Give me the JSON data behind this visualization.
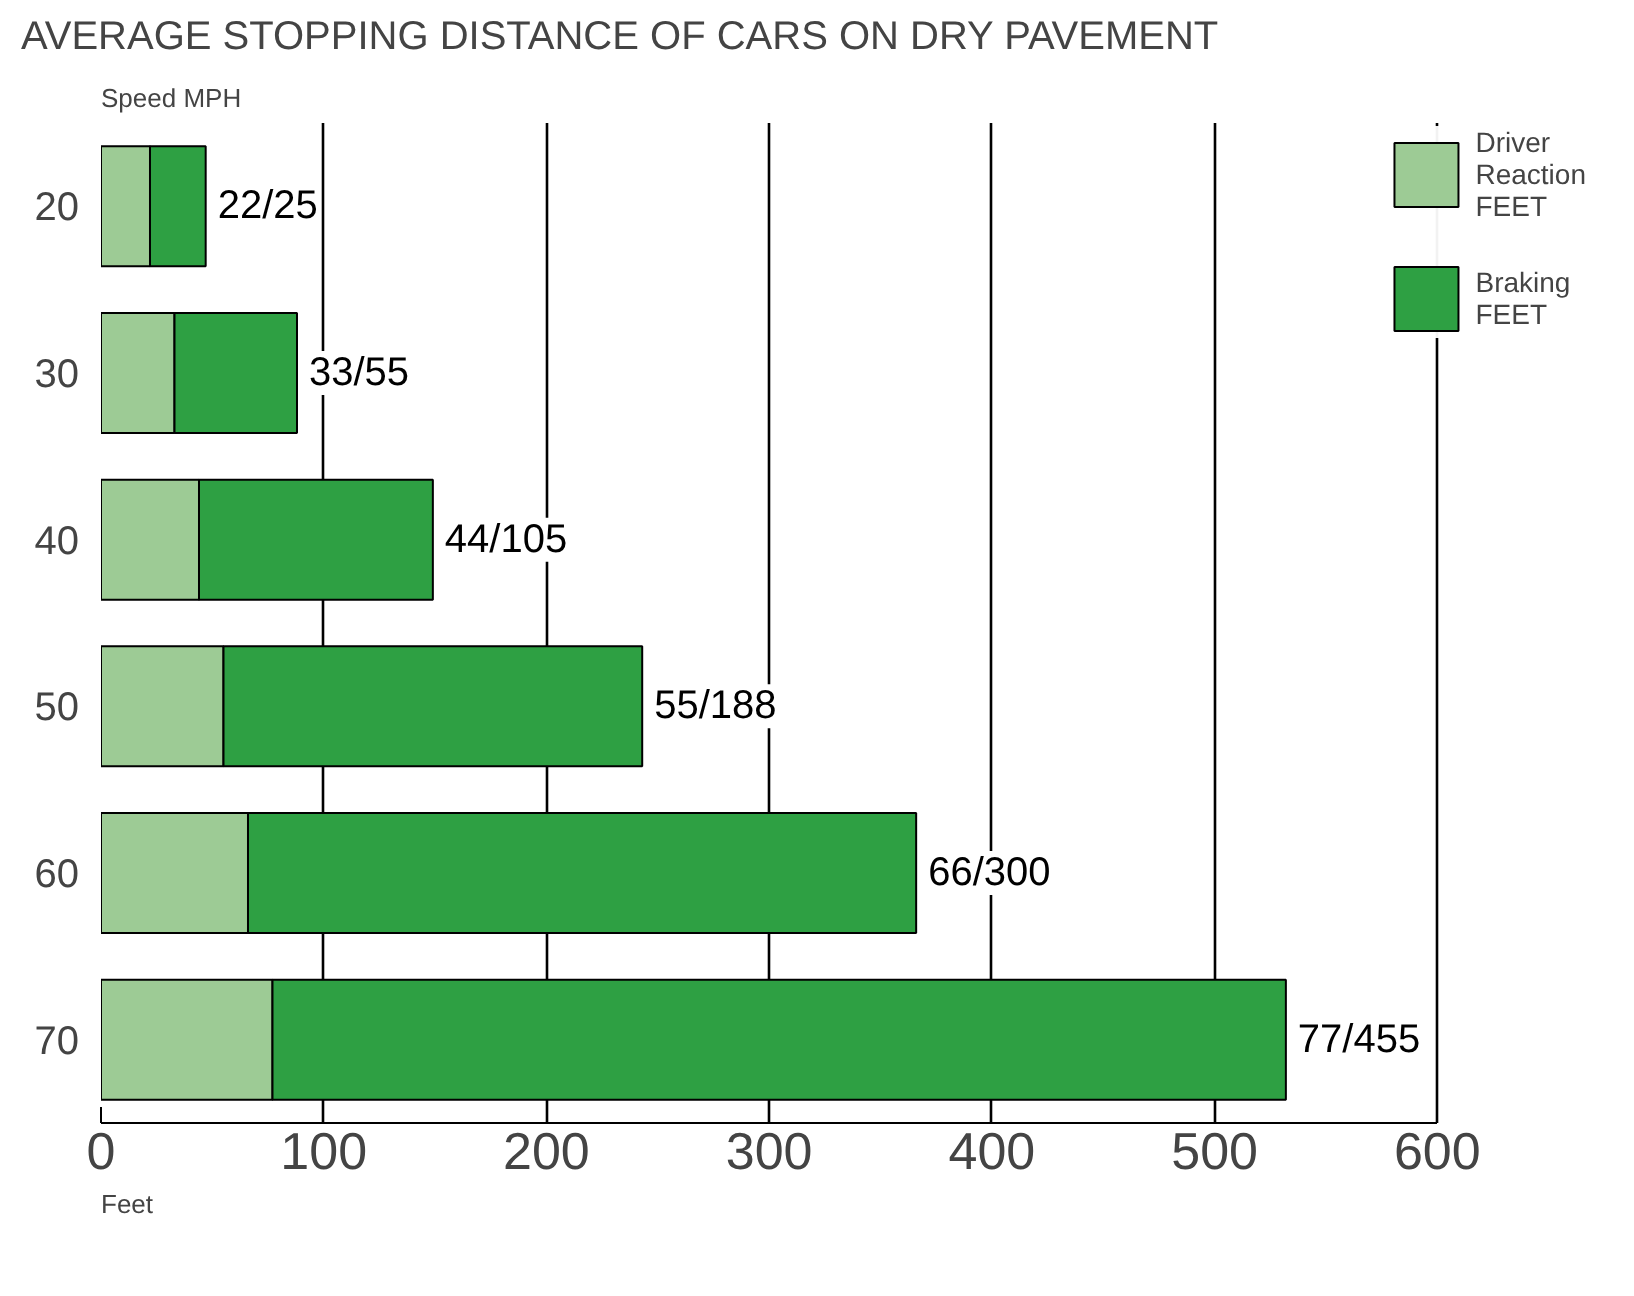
{
  "chart_data": {
    "type": "bar",
    "orientation": "horizontal",
    "stacked": true,
    "title": "AVERAGE STOPPING DISTANCE OF CARS ON DRY PAVEMENT",
    "ylabel": "Speed MPH",
    "xlabel": "Feet",
    "categories": [
      "20",
      "30",
      "40",
      "50",
      "60",
      "70"
    ],
    "series": [
      {
        "name": "Driver Reaction FEET",
        "color": "#9dcb95",
        "values": [
          22,
          33,
          44,
          55,
          66,
          77
        ]
      },
      {
        "name": "Braking FEET",
        "color": "#2ea043",
        "values": [
          25,
          55,
          105,
          188,
          300,
          455
        ]
      }
    ],
    "annotations": [
      {
        "text": "22/25",
        "x": 47,
        "y": "20"
      },
      {
        "text": "33/55",
        "x": 88,
        "y": "30"
      },
      {
        "text": "44/105",
        "x": 149,
        "y": "40"
      },
      {
        "text": "55/188",
        "x": 243,
        "y": "50"
      },
      {
        "text": "66/300",
        "x": 366,
        "y": "60"
      },
      {
        "text": "77/455",
        "x": 532,
        "y": "70"
      }
    ],
    "xlim": [
      0,
      600
    ],
    "xticks": [
      0,
      100,
      200,
      300,
      400,
      500,
      600
    ],
    "grid": "x",
    "legend": "top right"
  }
}
